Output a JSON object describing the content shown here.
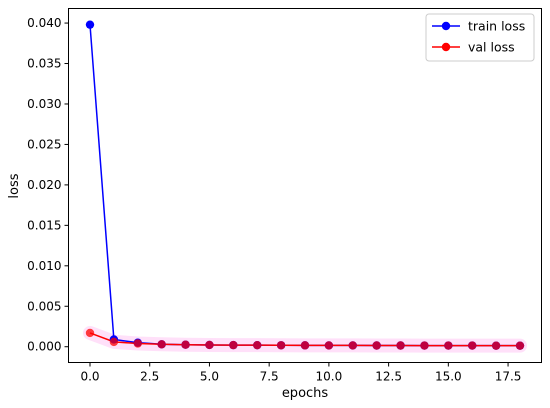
{
  "chart_data": {
    "type": "line",
    "xlabel": "epochs",
    "ylabel": "loss",
    "xlim": [
      -0.9,
      18.9
    ],
    "ylim": [
      -0.00195,
      0.0418
    ],
    "x_ticks": [
      0.0,
      2.5,
      5.0,
      7.5,
      10.0,
      12.5,
      15.0,
      17.5
    ],
    "x_tick_labels": [
      "0.0",
      "2.5",
      "5.0",
      "7.5",
      "10.0",
      "12.5",
      "15.0",
      "17.5"
    ],
    "y_ticks": [
      0.0,
      0.005,
      0.01,
      0.015,
      0.02,
      0.025,
      0.03,
      0.035,
      0.04
    ],
    "y_tick_labels": [
      "0.000",
      "0.005",
      "0.010",
      "0.015",
      "0.020",
      "0.025",
      "0.030",
      "0.035",
      "0.040"
    ],
    "legend_position": "top-right",
    "grid": false,
    "x": [
      0,
      1,
      2,
      3,
      4,
      5,
      6,
      7,
      8,
      9,
      10,
      11,
      12,
      13,
      14,
      15,
      16,
      17,
      18
    ],
    "series": [
      {
        "name": "train loss",
        "color": "#0000ff",
        "values": [
          0.0398,
          0.0009,
          0.0005,
          0.0003,
          0.00025,
          0.00022,
          0.0002,
          0.00019,
          0.00018,
          0.00017,
          0.00016,
          0.00016,
          0.00015,
          0.00015,
          0.00014,
          0.00014,
          0.00014,
          0.00013,
          0.00013
        ]
      },
      {
        "name": "val loss",
        "color": "#ff0000",
        "values": [
          0.0017,
          0.0006,
          0.0004,
          0.0003,
          0.00025,
          0.00022,
          0.0002,
          0.00019,
          0.00018,
          0.00017,
          0.00016,
          0.00016,
          0.00015,
          0.00015,
          0.00014,
          0.00014,
          0.00014,
          0.00013,
          0.00013
        ]
      }
    ]
  }
}
